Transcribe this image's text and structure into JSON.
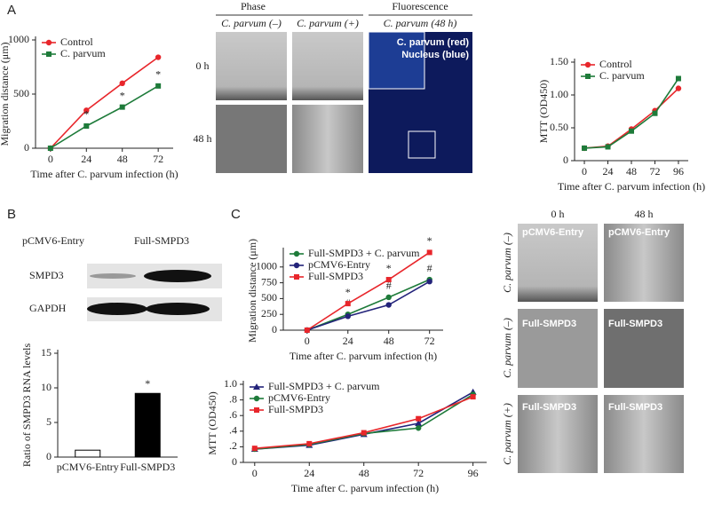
{
  "chart_data": [
    {
      "type": "line",
      "ylabel": "Migration distance (μm)",
      "xlabel": "Time after C. parvum infection (h)",
      "x": [
        0,
        24,
        48,
        72
      ],
      "xlim": [
        -10,
        82
      ],
      "xticks": [
        0,
        24,
        48,
        72
      ],
      "ylim": [
        0,
        1000
      ],
      "yticks": [
        0,
        500,
        1000
      ],
      "legend": "upper left",
      "series": [
        {
          "name": "Control",
          "color": "#e8262b",
          "marker": "circle",
          "values": [
            0,
            350,
            600,
            840
          ],
          "annotations": [
            null,
            null,
            null,
            null
          ]
        },
        {
          "name": "C. parvum",
          "color": "#1e7b3a",
          "marker": "square",
          "values": [
            0,
            205,
            380,
            575
          ],
          "annotations": [
            null,
            "*",
            "*",
            "*"
          ]
        }
      ]
    },
    {
      "type": "line",
      "ylabel": "MTT (OD450)",
      "xlabel": "Time after C. parvum infection (h)",
      "x": [
        0,
        24,
        48,
        72,
        96
      ],
      "xlim": [
        -10,
        106
      ],
      "xticks": [
        0,
        24,
        48,
        72,
        96
      ],
      "ylim": [
        0,
        1.5
      ],
      "yticks": [
        0,
        {
          "value": 0.5,
          "label": "0.50"
        },
        {
          "value": 1.0,
          "label": "1.00"
        },
        {
          "value": 1.5,
          "label": "1.50"
        }
      ],
      "legend": "upper left",
      "series": [
        {
          "name": "Control",
          "color": "#e8262b",
          "marker": "circle",
          "values": [
            0.19,
            0.22,
            0.48,
            0.76,
            1.1
          ],
          "annotations": [
            null,
            null,
            null,
            null,
            null
          ]
        },
        {
          "name": "C. parvum",
          "color": "#1e7b3a",
          "marker": "square",
          "values": [
            0.19,
            0.21,
            0.45,
            0.72,
            1.25
          ],
          "annotations": [
            null,
            null,
            null,
            null,
            null
          ]
        }
      ]
    },
    {
      "type": "bar",
      "ylabel": "Ratio of SMPD3 RNA levels",
      "categories": [
        "pCMV6-Entry",
        "Full-SMPD3"
      ],
      "values": [
        1.0,
        9.2
      ],
      "colors": [
        "#ffffff",
        "#000000"
      ],
      "annotations": [
        null,
        "*"
      ],
      "ylim": [
        0,
        15
      ],
      "yticks": [
        0,
        5,
        10,
        15
      ]
    },
    {
      "type": "line",
      "ylabel": "Migration distance (μm)",
      "xlabel": "Time after C. parvum infection (h)",
      "x": [
        0,
        24,
        48,
        72
      ],
      "xlim": [
        -14,
        80
      ],
      "xticks": [
        0,
        24,
        48,
        72
      ],
      "ylim": [
        0,
        1250
      ],
      "yticks": [
        0,
        250,
        500,
        750,
        1000
      ],
      "legend": "upper left",
      "series": [
        {
          "name": "Full-SMPD3 + C. parvum",
          "color": "#1e7b3a",
          "marker": "circle",
          "values": [
            0,
            250,
            520,
            800
          ],
          "annotations": [
            null,
            "#",
            "#",
            "#"
          ]
        },
        {
          "name": "pCMV6-Entry",
          "color": "#23237a",
          "marker": "circle",
          "values": [
            0,
            220,
            400,
            770
          ],
          "annotations": [
            null,
            null,
            null,
            null
          ]
        },
        {
          "name": "Full-SMPD3",
          "color": "#e8262b",
          "marker": "square",
          "values": [
            0,
            420,
            800,
            1230
          ],
          "annotations": [
            null,
            "*",
            "*",
            "*"
          ]
        }
      ]
    },
    {
      "type": "line",
      "ylabel": "MTT (OD450)",
      "xlabel": "Time after C. parvum infection (h)",
      "x": [
        0,
        24,
        48,
        72,
        96
      ],
      "xlim": [
        -5,
        102
      ],
      "xticks": [
        0,
        24,
        48,
        72,
        96
      ],
      "ylim": [
        0,
        1.0
      ],
      "yticks": [
        0,
        {
          "value": 0.2,
          "label": ".2"
        },
        {
          "value": 0.4,
          "label": ".4"
        },
        {
          "value": 0.6,
          "label": ".6"
        },
        {
          "value": 0.8,
          "label": ".8"
        },
        {
          "value": 1.0,
          "label": "1.0"
        }
      ],
      "legend": "upper left",
      "series": [
        {
          "name": "Full-SMPD3 + C. parvum",
          "color": "#23237a",
          "marker": "triangle",
          "values": [
            0.17,
            0.22,
            0.36,
            0.5,
            0.9
          ],
          "annotations": [
            null,
            null,
            null,
            null,
            null
          ]
        },
        {
          "name": "pCMV6-Entry",
          "color": "#1e7b3a",
          "marker": "circle",
          "values": [
            0.17,
            0.23,
            0.37,
            0.44,
            0.87
          ],
          "annotations": [
            null,
            null,
            null,
            null,
            null
          ]
        },
        {
          "name": "Full-SMPD3",
          "color": "#e8262b",
          "marker": "square",
          "values": [
            0.18,
            0.24,
            0.38,
            0.56,
            0.84
          ],
          "annotations": [
            null,
            null,
            null,
            null,
            null
          ]
        }
      ]
    }
  ],
  "figure": {
    "panel_letters": [
      "A",
      "B",
      "C"
    ],
    "phase": {
      "title": "Phase",
      "columns": [
        "C. parvum (–)",
        "C. parvum (+)"
      ],
      "rows": [
        "0 h",
        "48 h"
      ]
    },
    "fluorescence": {
      "title": "Fluorescence",
      "column": "C. parvum (48 h)",
      "legend": [
        "C. parvum (red)",
        "Nucleus (blue)"
      ]
    },
    "blot": {
      "lanes": [
        "pCMV6-Entry",
        "Full-SMPD3"
      ],
      "bands": [
        "SMPD3",
        "GAPDH"
      ]
    },
    "panel_c_images": {
      "columns": [
        "0 h",
        "48 h"
      ],
      "rows": [
        "C. parvum (–)",
        "C. parvum (–)",
        "C. parvum (+)"
      ],
      "captions": [
        [
          "pCMV6-Entry",
          "pCMV6-Entry"
        ],
        [
          "Full-SMPD3",
          "Full-SMPD3"
        ],
        [
          "Full-SMPD3",
          "Full-SMPD3"
        ]
      ]
    }
  }
}
